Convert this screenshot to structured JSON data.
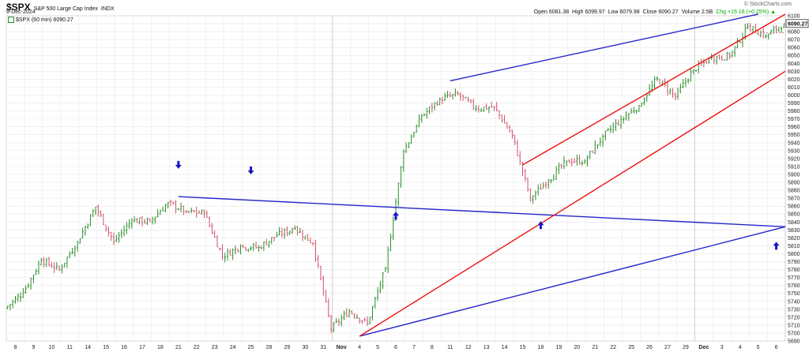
{
  "header": {
    "symbol": "$SPX",
    "name": "S&P 500 Large Cap Index",
    "exchange": "INDX",
    "date": "6-Dec-2024",
    "copyright": "© StockCharts.com",
    "stats_open": "Open 6081.38",
    "stats_high": "High 6099.97",
    "stats_low": "Low 6079.98",
    "stats_close": "Close 6090.27",
    "stats_volume": "Volume 2.5B",
    "stats_chg": "Chg +15.16 (+0.25%) ▲",
    "legend_label": "$SPX (60 min) 6090.27",
    "last_price_tag": "6090.27"
  },
  "colors": {
    "up_bar": "#2b8f2b",
    "down_bar": "#d0536b",
    "blue_line": "#2424cc",
    "red_line": "#ee1111",
    "arrow": "#1515c8",
    "grid": "#e8e8e8"
  },
  "chart_data": {
    "type": "ohlc",
    "interval": "60 min",
    "y_tick_labels": [
      5690,
      5700,
      5710,
      5720,
      5730,
      5740,
      5750,
      5760,
      5770,
      5780,
      5790,
      5800,
      5810,
      5820,
      5830,
      5840,
      5850,
      5860,
      5870,
      5880,
      5890,
      5900,
      5910,
      5920,
      5930,
      5940,
      5950,
      5960,
      5970,
      5980,
      5990,
      6000,
      6010,
      6020,
      6030,
      6040,
      6050,
      6060,
      6070,
      6080,
      6090,
      6100
    ],
    "ylim": [
      5690,
      6100
    ],
    "last_value": 6090.27,
    "x_tick_labels": [
      "8",
      "9",
      "10",
      "11",
      "14",
      "15",
      "16",
      "17",
      "18",
      "21",
      "22",
      "23",
      "24",
      "25",
      "28",
      "29",
      "30",
      "31",
      "Nov",
      "4",
      "5",
      "6",
      "7",
      "8",
      "11",
      "12",
      "13",
      "14",
      "15",
      "18",
      "19",
      "20",
      "21",
      "22",
      "25",
      "26",
      "27",
      "29",
      "Dec",
      "3",
      "4",
      "5",
      "6"
    ],
    "x_tick_bold": [
      "Nov",
      "Dec"
    ],
    "daily_closes": [
      {
        "date": "Oct 8",
        "close": 5751
      },
      {
        "date": "Oct 9",
        "close": 5792
      },
      {
        "date": "Oct 10",
        "close": 5780
      },
      {
        "date": "Oct 11",
        "close": 5815
      },
      {
        "date": "Oct 14",
        "close": 5859
      },
      {
        "date": "Oct 15",
        "close": 5815
      },
      {
        "date": "Oct 16",
        "close": 5842
      },
      {
        "date": "Oct 17",
        "close": 5841
      },
      {
        "date": "Oct 18",
        "close": 5864
      },
      {
        "date": "Oct 21",
        "close": 5853
      },
      {
        "date": "Oct 22",
        "close": 5851
      },
      {
        "date": "Oct 23",
        "close": 5797
      },
      {
        "date": "Oct 24",
        "close": 5809
      },
      {
        "date": "Oct 25",
        "close": 5808
      },
      {
        "date": "Oct 28",
        "close": 5823
      },
      {
        "date": "Oct 29",
        "close": 5832
      },
      {
        "date": "Oct 30",
        "close": 5813
      },
      {
        "date": "Oct 31",
        "close": 5705
      },
      {
        "date": "Nov 1",
        "close": 5728
      },
      {
        "date": "Nov 4",
        "close": 5712
      },
      {
        "date": "Nov 5",
        "close": 5782
      },
      {
        "date": "Nov 6",
        "close": 5929
      },
      {
        "date": "Nov 7",
        "close": 5973
      },
      {
        "date": "Nov 8",
        "close": 5995
      },
      {
        "date": "Nov 11",
        "close": 6001
      },
      {
        "date": "Nov 12",
        "close": 5983
      },
      {
        "date": "Nov 13",
        "close": 5985
      },
      {
        "date": "Nov 14",
        "close": 5949
      },
      {
        "date": "Nov 15",
        "close": 5870
      },
      {
        "date": "Nov 18",
        "close": 5893
      },
      {
        "date": "Nov 19",
        "close": 5917
      },
      {
        "date": "Nov 20",
        "close": 5917
      },
      {
        "date": "Nov 21",
        "close": 5948
      },
      {
        "date": "Nov 22",
        "close": 5969
      },
      {
        "date": "Nov 25",
        "close": 5987
      },
      {
        "date": "Nov 26",
        "close": 6021
      },
      {
        "date": "Nov 27",
        "close": 5998
      },
      {
        "date": "Nov 29",
        "close": 6032
      },
      {
        "date": "Dec 2",
        "close": 6047
      },
      {
        "date": "Dec 3",
        "close": 6049
      },
      {
        "date": "Dec 4",
        "close": 6086
      },
      {
        "date": "Dec 5",
        "close": 6075
      },
      {
        "date": "Dec 6",
        "close": 6090
      }
    ],
    "trendlines": [
      {
        "name": "blue-upper",
        "color": "blue",
        "from": {
          "date": "Nov 11",
          "value": 6018
        },
        "to": {
          "date": "Dec 5",
          "value": 6102
        }
      },
      {
        "name": "blue-horizontal",
        "color": "blue",
        "from": {
          "date": "Oct 21",
          "value": 5872
        },
        "to": {
          "date": "Dec 6",
          "value": 5834
        }
      },
      {
        "name": "blue-lower",
        "color": "blue",
        "from": {
          "date": "Nov 4",
          "value": 5696
        },
        "to": {
          "date": "Dec 6",
          "value": 5834
        }
      },
      {
        "name": "red-lower",
        "color": "red",
        "from": {
          "date": "Nov 4",
          "value": 5696
        },
        "to": {
          "date": "Dec 6",
          "value": 6030
        }
      },
      {
        "name": "red-upper",
        "color": "red",
        "from": {
          "date": "Nov 15",
          "value": 5912
        },
        "to": {
          "date": "Dec 6",
          "value": 6102
        }
      }
    ],
    "arrows": [
      {
        "direction": "down",
        "date": "Oct 21",
        "value": 5912
      },
      {
        "direction": "down",
        "date": "Oct 25",
        "value": 5905
      },
      {
        "direction": "up",
        "date": "Nov 6",
        "value": 5848
      },
      {
        "direction": "up",
        "date": "Nov 18",
        "value": 5836
      },
      {
        "direction": "up",
        "date": "Dec 6",
        "value": 5810
      }
    ]
  }
}
